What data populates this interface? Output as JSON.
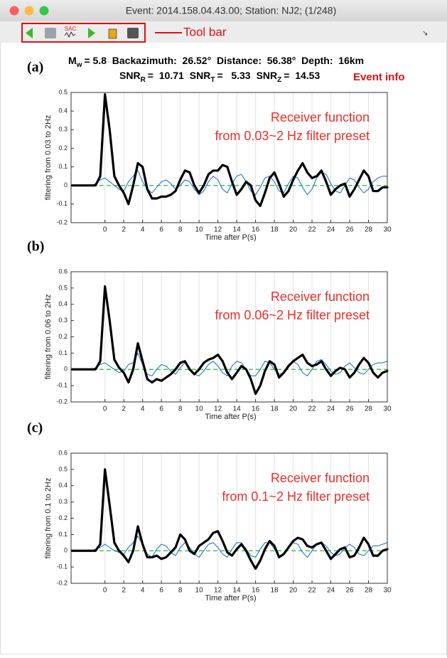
{
  "window": {
    "title": "Event: 2014.158.04.43.00; Station: NJ2; (1/248)"
  },
  "toolbar": {
    "annotation": "Tool bar"
  },
  "event_info": {
    "line1": {
      "symbol": "M",
      "sub": "w",
      "rest": "= 5.8  Backazimuth:  26.52°  Distance:  56.38°  Depth:  16km"
    },
    "line2": [
      {
        "symbol": "SNR",
        "sub": "R",
        "rest": "=  10.71"
      },
      {
        "symbol": "SNR",
        "sub": "T",
        "rest": "=   5.33"
      },
      {
        "symbol": "SNR",
        "sub": "Z",
        "rest": "=  14.53"
      }
    ],
    "annotation": "Event info"
  },
  "chart_data": [
    {
      "type": "line",
      "label": "(a)",
      "ylabel": "filtering from 0.03 to 2Hz",
      "xlabel": "Time after P(s)",
      "annotation": [
        "Receiver function",
        "from 0.03~2 Hz filter preset"
      ],
      "xlim": [
        -3.6,
        30
      ],
      "xticks": [
        0,
        2,
        4,
        6,
        8,
        10,
        12,
        14,
        16,
        18,
        20,
        22,
        24,
        26,
        28,
        30
      ],
      "ylim": [
        -0.2,
        0.5
      ],
      "yticks": [
        -0.2,
        -0.1,
        0,
        0.1,
        0.2,
        0.3,
        0.4,
        0.5
      ],
      "grid": "x",
      "hlines": [
        {
          "value": 0,
          "color": "#2db82d",
          "style": "dashed"
        }
      ],
      "x": [
        -3.5,
        -3,
        -2.5,
        -2,
        -1.5,
        -1,
        -0.5,
        0,
        0.5,
        1,
        1.5,
        2,
        2.5,
        3,
        3.5,
        4,
        4.5,
        5,
        5.5,
        6,
        6.5,
        7,
        7.5,
        8,
        8.5,
        9,
        9.5,
        10,
        10.5,
        11,
        11.5,
        12,
        12.5,
        13,
        13.5,
        14,
        14.5,
        15,
        15.5,
        16,
        16.5,
        17,
        17.5,
        18,
        18.5,
        19,
        19.5,
        20,
        20.5,
        21,
        21.5,
        22,
        22.5,
        23,
        23.5,
        24,
        24.5,
        25,
        25.5,
        26,
        26.5,
        27,
        27.5,
        28,
        28.5,
        29,
        29.5,
        30
      ],
      "series": [
        {
          "color": "#000000",
          "width": 3.2,
          "values": [
            0,
            0,
            0,
            0,
            0,
            0,
            0.05,
            0.49,
            0.3,
            0.05,
            0,
            -0.04,
            -0.1,
            0,
            0.12,
            0.1,
            -0.02,
            -0.07,
            -0.07,
            -0.06,
            -0.06,
            -0.05,
            -0.03,
            0.03,
            0.08,
            0.07,
            0,
            -0.04,
            0,
            0.06,
            0.08,
            0.08,
            0.11,
            0.1,
            0.02,
            -0.05,
            -0.02,
            0.02,
            0,
            -0.08,
            -0.11,
            -0.04,
            0.04,
            0.07,
            0.01,
            -0.06,
            -0.03,
            0.03,
            0.08,
            0.12,
            0.07,
            0.04,
            0.05,
            0.08,
            0.02,
            -0.05,
            -0.02,
            0,
            0.01,
            -0.06,
            -0.02,
            0.03,
            0.08,
            0.05,
            -0.03,
            -0.03,
            -0.01,
            -0.01
          ]
        },
        {
          "color": "#1f78d1",
          "width": 1.1,
          "values": [
            0,
            0,
            0,
            0,
            0,
            0.01,
            0.03,
            0.04,
            0.02,
            0,
            -0.02,
            -0.03,
            0.02,
            0.05,
            0.08,
            0.02,
            -0.02,
            -0.04,
            -0.01,
            0.02,
            0.03,
            0.01,
            -0.02,
            0,
            0.03,
            0.02,
            -0.02,
            -0.05,
            -0.03,
            0.02,
            0.05,
            0.03,
            -0.02,
            -0.04,
            0.01,
            0.05,
            0.06,
            0.02,
            -0.03,
            -0.05,
            -0.01,
            0.04,
            0.05,
            0.02,
            -0.03,
            -0.04,
            0.01,
            0.05,
            0.04,
            -0.01,
            -0.05,
            -0.02,
            0.04,
            0.07,
            0.06,
            0.01,
            -0.03,
            -0.04,
            0,
            0.04,
            0.03,
            -0.01,
            -0.04,
            -0.02,
            0.02,
            0.04,
            0.05,
            0.05
          ]
        }
      ]
    },
    {
      "type": "line",
      "label": "(b)",
      "ylabel": "filtering from 0.06 to 2Hz",
      "xlabel": "Time after P(s)",
      "annotation": [
        "Receiver function",
        "from 0.06~2 Hz filter preset"
      ],
      "xlim": [
        -3.6,
        30
      ],
      "xticks": [
        0,
        2,
        4,
        6,
        8,
        10,
        12,
        14,
        16,
        18,
        20,
        22,
        24,
        26,
        28,
        30
      ],
      "ylim": [
        -0.2,
        0.6
      ],
      "yticks": [
        -0.2,
        -0.1,
        0,
        0.1,
        0.2,
        0.3,
        0.4,
        0.5,
        0.6
      ],
      "grid": "x",
      "hlines": [
        {
          "value": 0,
          "color": "#2db82d",
          "style": "dashed"
        }
      ],
      "x": [
        -3.5,
        -3,
        -2.5,
        -2,
        -1.5,
        -1,
        -0.5,
        0,
        0.5,
        1,
        1.5,
        2,
        2.5,
        3,
        3.5,
        4,
        4.5,
        5,
        5.5,
        6,
        6.5,
        7,
        7.5,
        8,
        8.5,
        9,
        9.5,
        10,
        10.5,
        11,
        11.5,
        12,
        12.5,
        13,
        13.5,
        14,
        14.5,
        15,
        15.5,
        16,
        16.5,
        17,
        17.5,
        18,
        18.5,
        19,
        19.5,
        20,
        20.5,
        21,
        21.5,
        22,
        22.5,
        23,
        23.5,
        24,
        24.5,
        25,
        25.5,
        26,
        26.5,
        27,
        27.5,
        28,
        28.5,
        29,
        29.5,
        30
      ],
      "series": [
        {
          "color": "#000000",
          "width": 3.2,
          "values": [
            0,
            0,
            0,
            0,
            0,
            0,
            0.05,
            0.51,
            0.3,
            0.06,
            0.01,
            -0.02,
            -0.08,
            0,
            0.16,
            0.05,
            -0.06,
            -0.08,
            -0.06,
            -0.07,
            -0.05,
            -0.03,
            0,
            0.04,
            0.05,
            0,
            -0.03,
            0,
            0.04,
            0.06,
            0.07,
            0.09,
            0.05,
            -0.02,
            -0.06,
            -0.02,
            0.02,
            0,
            -0.06,
            -0.15,
            -0.1,
            -0.01,
            0.05,
            0.03,
            -0.05,
            -0.02,
            0.02,
            0.05,
            0.07,
            0.09,
            0.04,
            0.02,
            0.03,
            0.05,
            0,
            -0.04,
            -0.01,
            0.01,
            0,
            -0.05,
            -0.02,
            0.03,
            0.07,
            0.04,
            -0.02,
            -0.05,
            -0.02,
            -0.01
          ]
        },
        {
          "color": "#1f78d1",
          "width": 1.1,
          "values": [
            0,
            0,
            0,
            0,
            0,
            0.01,
            0.03,
            0.04,
            0.02,
            0,
            -0.02,
            -0.01,
            0.03,
            0.04,
            0.1,
            0.03,
            -0.03,
            -0.04,
            0,
            0.03,
            0.02,
            -0.01,
            -0.03,
            0.01,
            0.04,
            0.01,
            -0.03,
            -0.04,
            -0.01,
            0.03,
            0.05,
            0.02,
            -0.02,
            -0.04,
            0.02,
            0.05,
            0.04,
            0,
            -0.04,
            -0.04,
            0,
            0.05,
            0.04,
            0,
            -0.03,
            -0.02,
            0.03,
            0.05,
            0.03,
            -0.02,
            -0.04,
            0,
            0.05,
            0.06,
            0.03,
            -0.01,
            -0.03,
            -0.02,
            0.02,
            0.04,
            0.01,
            -0.02,
            -0.03,
            0,
            0.03,
            0.04,
            0.04,
            0.05
          ]
        }
      ]
    },
    {
      "type": "line",
      "label": "(c)",
      "ylabel": "filtering from 0.1 to 2Hz",
      "xlabel": "Time after P(s)",
      "annotation": [
        "Receiver function",
        "from 0.1~2 Hz filter preset"
      ],
      "xlim": [
        -3.6,
        30
      ],
      "xticks": [
        0,
        2,
        4,
        6,
        8,
        10,
        12,
        14,
        16,
        18,
        20,
        22,
        24,
        26,
        28,
        30
      ],
      "ylim": [
        -0.2,
        0.6
      ],
      "yticks": [
        -0.2,
        -0.1,
        0,
        0.1,
        0.2,
        0.3,
        0.4,
        0.5,
        0.6
      ],
      "grid": "x",
      "hlines": [
        {
          "value": 0,
          "color": "#2db82d",
          "style": "dashed"
        }
      ],
      "x": [
        -3.5,
        -3,
        -2.5,
        -2,
        -1.5,
        -1,
        -0.5,
        0,
        0.5,
        1,
        1.5,
        2,
        2.5,
        3,
        3.5,
        4,
        4.5,
        5,
        5.5,
        6,
        6.5,
        7,
        7.5,
        8,
        8.5,
        9,
        9.5,
        10,
        10.5,
        11,
        11.5,
        12,
        12.5,
        13,
        13.5,
        14,
        14.5,
        15,
        15.5,
        16,
        16.5,
        17,
        17.5,
        18,
        18.5,
        19,
        19.5,
        20,
        20.5,
        21,
        21.5,
        22,
        22.5,
        23,
        23.5,
        24,
        24.5,
        25,
        25.5,
        26,
        26.5,
        27,
        27.5,
        28,
        28.5,
        29,
        29.5,
        30
      ],
      "series": [
        {
          "color": "#000000",
          "width": 3.2,
          "values": [
            0,
            0,
            0,
            0,
            0,
            0,
            0.04,
            0.5,
            0.28,
            0.05,
            0,
            -0.03,
            -0.07,
            0,
            0.15,
            0.04,
            -0.04,
            -0.04,
            -0.03,
            -0.05,
            -0.04,
            -0.01,
            0.02,
            0.1,
            0.07,
            0,
            -0.02,
            0.03,
            0.05,
            0.07,
            0.11,
            0.12,
            0.06,
            -0.01,
            -0.03,
            0.01,
            0.04,
            0,
            -0.06,
            -0.11,
            -0.06,
            0.01,
            0.06,
            0.03,
            -0.04,
            -0.02,
            0.02,
            0.06,
            0.08,
            0.07,
            0.03,
            0.02,
            0.04,
            0.05,
            0,
            -0.05,
            -0.02,
            0.01,
            0.02,
            -0.04,
            -0.03,
            0.02,
            0.08,
            0.04,
            -0.03,
            -0.03,
            0,
            0.01
          ]
        },
        {
          "color": "#1f78d1",
          "width": 1.1,
          "values": [
            0,
            0,
            0,
            0,
            0,
            0.01,
            0.02,
            0.04,
            0.02,
            0,
            -0.01,
            -0.02,
            0.02,
            0.05,
            0.09,
            0.04,
            -0.02,
            -0.04,
            0.01,
            0.04,
            0.03,
            -0.01,
            -0.03,
            0.02,
            0.05,
            0.02,
            -0.02,
            -0.04,
            0,
            0.04,
            0.05,
            0.02,
            -0.02,
            -0.04,
            0.01,
            0.05,
            0.05,
            0.01,
            -0.03,
            -0.04,
            0.01,
            0.05,
            0.05,
            0.01,
            -0.03,
            -0.02,
            0.02,
            0.05,
            0.04,
            -0.01,
            -0.04,
            0,
            0.04,
            0.05,
            0.03,
            -0.01,
            -0.03,
            -0.02,
            0.02,
            0.04,
            0.02,
            -0.02,
            -0.03,
            0,
            0.03,
            0.03,
            0.04,
            0.05
          ]
        }
      ]
    }
  ]
}
